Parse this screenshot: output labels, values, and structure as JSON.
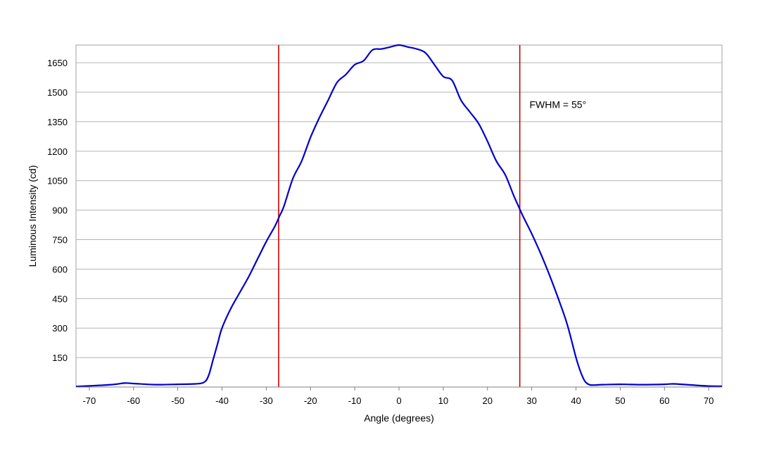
{
  "chart_data": {
    "type": "line",
    "title": "",
    "xlabel": "Angle (degrees)",
    "ylabel": "Luminous Intensity (cd)",
    "xlim": [
      -73,
      73
    ],
    "ylim": [
      0,
      1740
    ],
    "xticks": [
      -70,
      -60,
      -50,
      -40,
      -30,
      -20,
      -10,
      0,
      10,
      20,
      30,
      40,
      50,
      60,
      70
    ],
    "yticks": [
      150,
      300,
      450,
      600,
      750,
      900,
      1050,
      1200,
      1350,
      1500,
      1650
    ],
    "grid": "horizontal",
    "series": [
      {
        "color": "#0000cc",
        "x": [
          -73,
          -70,
          -65,
          -62,
          -60,
          -55,
          -50,
          -46,
          -44,
          -43,
          -42,
          -41,
          -40,
          -38,
          -36,
          -34,
          -32,
          -30,
          -28,
          -27,
          -26,
          -24,
          -22,
          -20,
          -18,
          -16,
          -14,
          -12,
          -10,
          -8,
          -6,
          -4,
          -2,
          0,
          2,
          4,
          6,
          8,
          10,
          12,
          14,
          16,
          18,
          20,
          22,
          24,
          26,
          27,
          28,
          30,
          32,
          34,
          36,
          38,
          40,
          41,
          42,
          43,
          44,
          46,
          50,
          55,
          60,
          62,
          65,
          70,
          73
        ],
        "y": [
          3,
          6,
          12,
          20,
          18,
          12,
          14,
          16,
          25,
          60,
          140,
          220,
          300,
          400,
          480,
          560,
          650,
          740,
          820,
          870,
          920,
          1060,
          1150,
          1270,
          1370,
          1460,
          1550,
          1590,
          1640,
          1660,
          1715,
          1720,
          1730,
          1740,
          1730,
          1720,
          1700,
          1640,
          1580,
          1560,
          1460,
          1400,
          1340,
          1250,
          1150,
          1080,
          970,
          920,
          870,
          780,
          680,
          570,
          450,
          320,
          150,
          80,
          30,
          12,
          10,
          12,
          14,
          12,
          14,
          16,
          12,
          5,
          4
        ]
      }
    ],
    "vlines": [
      {
        "x": -27.2,
        "color": "#cc0000"
      },
      {
        "x": 27.3,
        "color": "#cc0000"
      }
    ],
    "annotations": [
      {
        "text": "FWHM = 55°",
        "x": 29.5,
        "y": 1420
      }
    ]
  }
}
